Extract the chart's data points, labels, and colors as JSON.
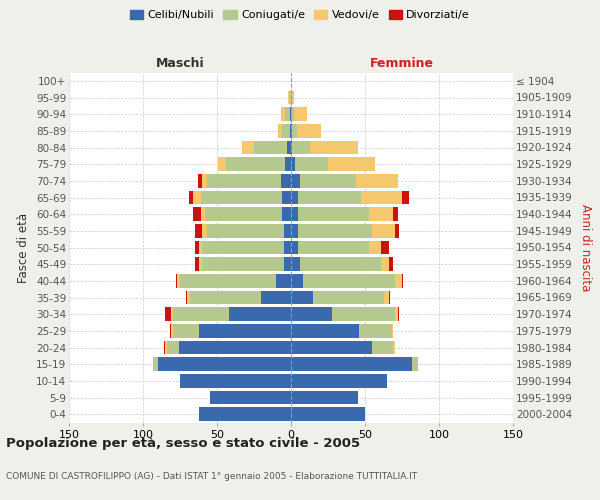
{
  "age_groups": [
    "0-4",
    "5-9",
    "10-14",
    "15-19",
    "20-24",
    "25-29",
    "30-34",
    "35-39",
    "40-44",
    "45-49",
    "50-54",
    "55-59",
    "60-64",
    "65-69",
    "70-74",
    "75-79",
    "80-84",
    "85-89",
    "90-94",
    "95-99",
    "100+"
  ],
  "birth_years": [
    "2000-2004",
    "1995-1999",
    "1990-1994",
    "1985-1989",
    "1980-1984",
    "1975-1979",
    "1970-1974",
    "1965-1969",
    "1960-1964",
    "1955-1959",
    "1950-1954",
    "1945-1949",
    "1940-1944",
    "1935-1939",
    "1930-1934",
    "1925-1929",
    "1920-1924",
    "1915-1919",
    "1910-1914",
    "1905-1909",
    "≤ 1904"
  ],
  "male": {
    "celibi": [
      62,
      55,
      75,
      90,
      76,
      62,
      42,
      20,
      10,
      5,
      5,
      5,
      6,
      6,
      7,
      4,
      3,
      1,
      1,
      0,
      0
    ],
    "coniugati": [
      0,
      0,
      0,
      3,
      8,
      18,
      38,
      48,
      65,
      55,
      55,
      52,
      52,
      55,
      50,
      40,
      22,
      5,
      3,
      1,
      0
    ],
    "vedovi": [
      0,
      0,
      0,
      0,
      1,
      1,
      1,
      2,
      2,
      2,
      2,
      3,
      3,
      5,
      3,
      5,
      8,
      3,
      3,
      1,
      0
    ],
    "divorziati": [
      0,
      0,
      0,
      0,
      1,
      1,
      4,
      1,
      1,
      3,
      3,
      5,
      5,
      3,
      3,
      0,
      0,
      0,
      0,
      0,
      0
    ]
  },
  "female": {
    "nubili": [
      50,
      45,
      65,
      82,
      55,
      46,
      28,
      15,
      8,
      6,
      5,
      5,
      5,
      5,
      6,
      3,
      1,
      1,
      0,
      0,
      0
    ],
    "coniugate": [
      0,
      0,
      0,
      4,
      14,
      22,
      42,
      48,
      62,
      55,
      48,
      50,
      48,
      42,
      38,
      22,
      12,
      3,
      2,
      0,
      0
    ],
    "vedove": [
      0,
      0,
      0,
      0,
      1,
      1,
      2,
      3,
      5,
      5,
      8,
      15,
      16,
      28,
      28,
      32,
      32,
      16,
      9,
      2,
      0
    ],
    "divorziate": [
      0,
      0,
      0,
      0,
      0,
      0,
      1,
      1,
      1,
      3,
      5,
      3,
      3,
      5,
      0,
      0,
      0,
      0,
      0,
      0,
      0
    ]
  },
  "colors": {
    "celibi_nubili": "#3a6aad",
    "coniugati": "#b5c98e",
    "vedovi": "#f5c86e",
    "divorziati": "#cc1111"
  },
  "xlim": 150,
  "title": "Popolazione per età, sesso e stato civile - 2005",
  "subtitle": "COMUNE DI CASTROFILIPPO (AG) - Dati ISTAT 1° gennaio 2005 - Elaborazione TUTTITALIA.IT",
  "ylabel_left": "Fasce di età",
  "ylabel_right": "Anni di nascita",
  "xlabel_male": "Maschi",
  "xlabel_female": "Femmine",
  "legend_labels": [
    "Celibi/Nubili",
    "Coniugati/e",
    "Vedovi/e",
    "Divorziati/e"
  ],
  "bg_color": "#f0f0eb",
  "bar_bg_color": "#ffffff",
  "female_label_color": "#cc2222",
  "right_ylabel_color": "#cc2222"
}
